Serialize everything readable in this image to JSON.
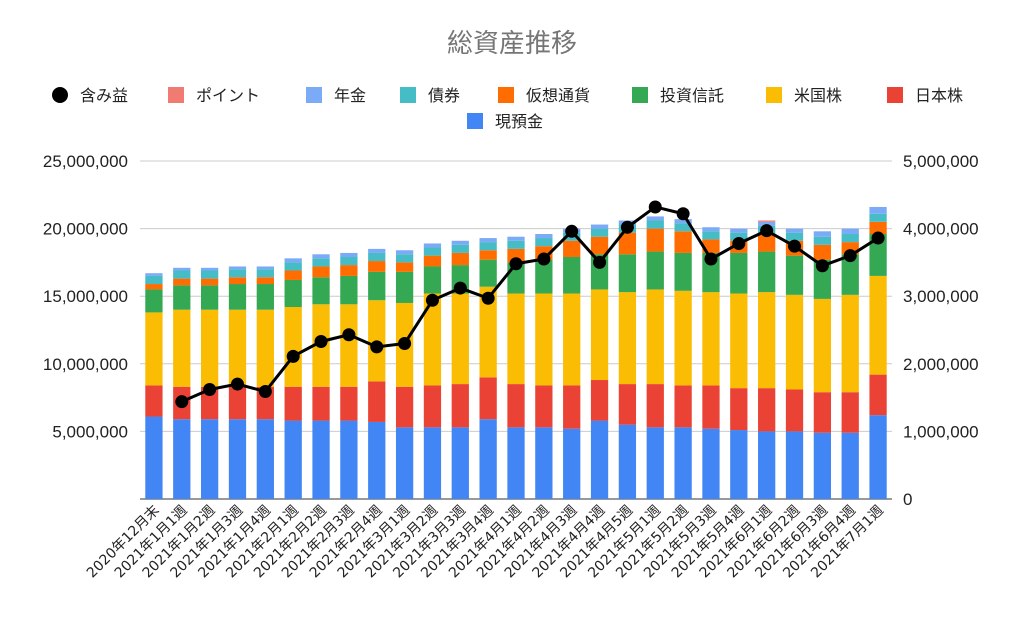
{
  "chart_data": {
    "type": "bar",
    "stacked": true,
    "title": "総資産推移",
    "legend_position": "top",
    "grid": true,
    "y_left": {
      "lim": [
        0,
        25000000
      ],
      "ticks": [
        5000000,
        10000000,
        15000000,
        20000000,
        25000000
      ],
      "tick_labels": [
        "5,000,000",
        "10,000,000",
        "15,000,000",
        "20,000,000",
        "25,000,000"
      ]
    },
    "y_right": {
      "lim": [
        0,
        5000000
      ],
      "ticks": [
        0,
        1000000,
        2000000,
        3000000,
        4000000,
        5000000
      ],
      "tick_labels": [
        "0",
        "1,000,000",
        "2,000,000",
        "3,000,000",
        "4,000,000",
        "5,000,000"
      ]
    },
    "categories": [
      "2020年12月末",
      "2021年1月1週",
      "2021年1月2週",
      "2021年1月3週",
      "2021年1月4週",
      "2021年2月1週",
      "2021年2月2週",
      "2021年2月3週",
      "2021年2月4週",
      "2021年3月1週",
      "2021年3月2週",
      "2021年3月3週",
      "2021年3月4週",
      "2021年4月1週",
      "2021年4月2週",
      "2021年4月3週",
      "2021年4月4週",
      "2021年4月5週",
      "2021年5月1週",
      "2021年5月2週",
      "2021年5月3週",
      "2021年5月4週",
      "2021年6月1週",
      "2021年6月2週",
      "2021年6月3週",
      "2021年6月4週",
      "2021年7月1週"
    ],
    "bar_series": [
      {
        "name": "現預金",
        "color": "#4285f4",
        "values": [
          6100000,
          5900000,
          5900000,
          5900000,
          5900000,
          5800000,
          5800000,
          5800000,
          5700000,
          5300000,
          5300000,
          5300000,
          5900000,
          5300000,
          5300000,
          5200000,
          5800000,
          5500000,
          5300000,
          5300000,
          5200000,
          5100000,
          5000000,
          5000000,
          4900000,
          4900000,
          6200000
        ]
      },
      {
        "name": "日本株",
        "color": "#ea4335",
        "values": [
          2300000,
          2400000,
          2400000,
          2400000,
          2400000,
          2500000,
          2500000,
          2500000,
          3000000,
          3000000,
          3100000,
          3200000,
          3100000,
          3200000,
          3100000,
          3200000,
          3000000,
          3000000,
          3200000,
          3100000,
          3200000,
          3100000,
          3200000,
          3100000,
          3000000,
          3000000,
          3000000
        ]
      },
      {
        "name": "米国株",
        "color": "#fbbc04",
        "values": [
          5400000,
          5700000,
          5700000,
          5700000,
          5700000,
          5900000,
          6100000,
          6100000,
          6000000,
          6200000,
          6800000,
          6700000,
          6700000,
          6700000,
          6800000,
          6800000,
          6700000,
          6800000,
          7000000,
          7000000,
          6900000,
          7000000,
          7100000,
          7000000,
          6900000,
          7200000,
          7300000
        ]
      },
      {
        "name": "投資信託",
        "color": "#34a853",
        "values": [
          1700000,
          1800000,
          1800000,
          1900000,
          1900000,
          2000000,
          2000000,
          2100000,
          2100000,
          2300000,
          2000000,
          2100000,
          2000000,
          2300000,
          2500000,
          2700000,
          2600000,
          2800000,
          2800000,
          2800000,
          2900000,
          3000000,
          3000000,
          2900000,
          2900000,
          3000000,
          3100000
        ]
      },
      {
        "name": "仮想通貨",
        "color": "#ff6d01",
        "values": [
          400000,
          500000,
          500000,
          500000,
          500000,
          700000,
          800000,
          800000,
          800000,
          700000,
          800000,
          900000,
          700000,
          1000000,
          1000000,
          1200000,
          1300000,
          1600000,
          1700000,
          1600000,
          1000000,
          900000,
          1300000,
          1100000,
          1100000,
          900000,
          900000
        ]
      },
      {
        "name": "債券",
        "color": "#46bdc6",
        "values": [
          600000,
          600000,
          600000,
          600000,
          600000,
          600000,
          600000,
          600000,
          600000,
          600000,
          600000,
          600000,
          600000,
          600000,
          600000,
          600000,
          600000,
          600000,
          600000,
          600000,
          600000,
          600000,
          600000,
          600000,
          600000,
          600000,
          600000
        ]
      },
      {
        "name": "年金",
        "color": "#7baaf7",
        "values": [
          200000,
          200000,
          200000,
          200000,
          200000,
          300000,
          300000,
          300000,
          300000,
          300000,
          300000,
          300000,
          300000,
          300000,
          300000,
          300000,
          300000,
          300000,
          300000,
          300000,
          300000,
          300000,
          300000,
          300000,
          400000,
          400000,
          500000
        ]
      },
      {
        "name": "ポイント",
        "color": "#f07b72",
        "values": [
          0,
          0,
          0,
          0,
          0,
          0,
          0,
          0,
          0,
          0,
          0,
          0,
          0,
          0,
          0,
          0,
          0,
          0,
          0,
          0,
          0,
          0,
          100000,
          0,
          0,
          0,
          0
        ]
      }
    ],
    "line_series": {
      "name": "含み益",
      "color": "#000000",
      "axis": "right",
      "values": [
        null,
        1440000,
        1620000,
        1700000,
        1590000,
        2110000,
        2330000,
        2430000,
        2250000,
        2300000,
        2940000,
        3120000,
        2970000,
        3480000,
        3550000,
        3960000,
        3500000,
        4020000,
        4320000,
        4220000,
        3550000,
        3780000,
        3970000,
        3740000,
        3450000,
        3600000,
        3860000
      ]
    }
  },
  "legend_items": [
    {
      "name": "含み益",
      "kind": "dot",
      "color": "#000000"
    },
    {
      "name": "ポイント",
      "kind": "square",
      "color": "#f07b72"
    },
    {
      "name": "年金",
      "kind": "square",
      "color": "#7baaf7"
    },
    {
      "name": "債券",
      "kind": "square",
      "color": "#46bdc6"
    },
    {
      "name": "仮想通貨",
      "kind": "square",
      "color": "#ff6d01"
    },
    {
      "name": "投資信託",
      "kind": "square",
      "color": "#34a853"
    },
    {
      "name": "米国株",
      "kind": "square",
      "color": "#fbbc04"
    },
    {
      "name": "日本株",
      "kind": "square",
      "color": "#ea4335"
    },
    {
      "name": "現預金",
      "kind": "square",
      "color": "#4285f4"
    }
  ]
}
